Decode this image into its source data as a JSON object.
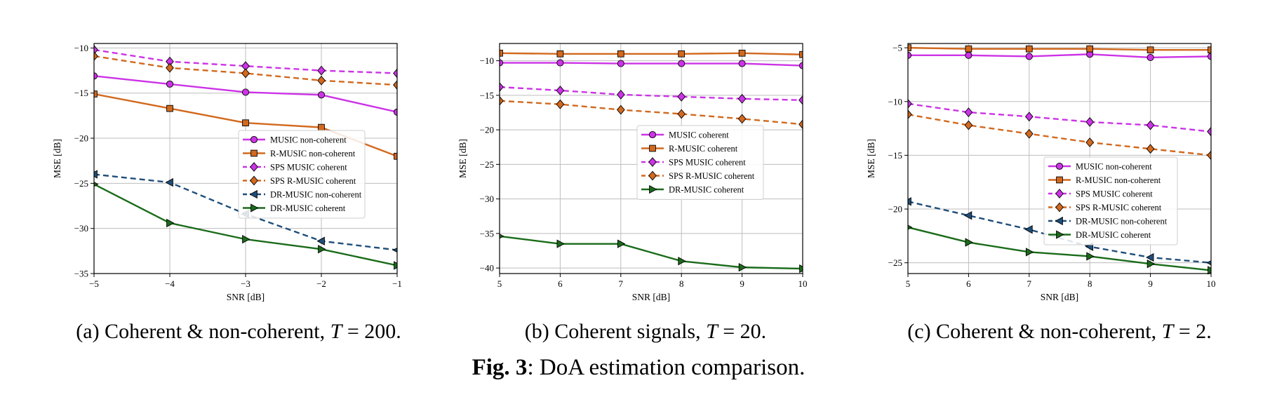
{
  "figure": {
    "caption_label": "Fig. 3",
    "caption_text": ": DoA estimation comparison."
  },
  "chart_data": [
    {
      "type": "line",
      "subcaption": {
        "prefix": "(a) Coherent & non-coherent, ",
        "var": "T",
        "eq": " = 200."
      },
      "xlabel": "SNR [dB]",
      "ylabel": "MSE [dB]",
      "xlim": [
        -5,
        -1
      ],
      "ylim": [
        -35,
        -9.5
      ],
      "xticks": [
        -5,
        -4,
        -3,
        -2,
        -1
      ],
      "xtick_labels": [
        "−5",
        "−4",
        "−3",
        "−2",
        "−1"
      ],
      "yticks": [
        -35,
        -30,
        -25,
        -20,
        -15,
        -10
      ],
      "ytick_labels": [
        "−35",
        "−30",
        "−25",
        "−20",
        "−15",
        "−10"
      ],
      "grid": true,
      "legend_position": "center-right",
      "x": [
        -5,
        -4,
        -3,
        -2,
        -1
      ],
      "series": [
        {
          "name": "MUSIC non-coherent",
          "values": [
            -13.1,
            -14.0,
            -14.9,
            -15.2,
            -17.1
          ],
          "color": "#cc33e6",
          "marker": "circle",
          "dash": "solid"
        },
        {
          "name": "R-MUSIC non-coherent",
          "values": [
            -15.1,
            -16.7,
            -18.3,
            -18.8,
            -22.0
          ],
          "color": "#d2691e",
          "marker": "square",
          "dash": "solid"
        },
        {
          "name": "SPS MUSIC coherent",
          "values": [
            -10.2,
            -11.5,
            -12.0,
            -12.5,
            -12.8
          ],
          "color": "#cc33e6",
          "marker": "diamond",
          "dash": "dashed"
        },
        {
          "name": "SPS R-MUSIC coherent",
          "values": [
            -10.9,
            -12.2,
            -12.8,
            -13.6,
            -14.1
          ],
          "color": "#d2691e",
          "marker": "diamond",
          "dash": "dashed"
        },
        {
          "name": "DR-MUSIC non-coherent",
          "values": [
            -24.0,
            -24.9,
            -28.4,
            -31.4,
            -32.4
          ],
          "color": "#1f4e79",
          "marker": "triangle-left",
          "dash": "dashed"
        },
        {
          "name": "DR-MUSIC coherent",
          "values": [
            -25.1,
            -29.4,
            -31.2,
            -32.3,
            -34.1
          ],
          "color": "#1a6b1a",
          "marker": "triangle-right",
          "dash": "solid"
        }
      ]
    },
    {
      "type": "line",
      "subcaption": {
        "prefix": "(b) Coherent signals, ",
        "var": "T",
        "eq": " = 20."
      },
      "xlabel": "SNR [dB]",
      "ylabel": "MSE [dB]",
      "xlim": [
        5,
        10
      ],
      "ylim": [
        -40.8,
        -7.5
      ],
      "xticks": [
        5,
        6,
        7,
        8,
        9,
        10
      ],
      "xtick_labels": [
        "5",
        "6",
        "7",
        "8",
        "9",
        "10"
      ],
      "yticks": [
        -40,
        -35,
        -30,
        -25,
        -20,
        -15,
        -10
      ],
      "ytick_labels": [
        "−40",
        "−35",
        "−30",
        "−25",
        "−20",
        "−15",
        "−10"
      ],
      "grid": true,
      "legend_position": "center-right",
      "x": [
        5,
        6,
        7,
        8,
        9,
        10
      ],
      "series": [
        {
          "name": "MUSIC coherent",
          "values": [
            -10.3,
            -10.3,
            -10.4,
            -10.4,
            -10.4,
            -10.7
          ],
          "color": "#cc33e6",
          "marker": "circle",
          "dash": "solid"
        },
        {
          "name": "R-MUSIC coherent",
          "values": [
            -8.9,
            -9.0,
            -9.0,
            -9.0,
            -8.9,
            -9.1
          ],
          "color": "#d2691e",
          "marker": "square",
          "dash": "solid"
        },
        {
          "name": "SPS MUSIC coherent",
          "values": [
            -13.8,
            -14.3,
            -14.9,
            -15.2,
            -15.5,
            -15.7
          ],
          "color": "#cc33e6",
          "marker": "diamond",
          "dash": "dashed"
        },
        {
          "name": "SPS R-MUSIC coherent",
          "values": [
            -15.8,
            -16.3,
            -17.1,
            -17.7,
            -18.4,
            -19.2
          ],
          "color": "#d2691e",
          "marker": "diamond",
          "dash": "dashed"
        },
        {
          "name": "DR-MUSIC coherent",
          "values": [
            -35.4,
            -36.5,
            -36.5,
            -39.0,
            -39.9,
            -40.1
          ],
          "color": "#1a6b1a",
          "marker": "triangle-right",
          "dash": "solid"
        }
      ]
    },
    {
      "type": "line",
      "subcaption": {
        "prefix": "(c) Coherent & non-coherent, ",
        "var": "T",
        "eq": " = 2."
      },
      "xlabel": "SNR [dB]",
      "ylabel": "MSE [dB]",
      "xlim": [
        5,
        10
      ],
      "ylim": [
        -26,
        -4.6
      ],
      "xticks": [
        5,
        6,
        7,
        8,
        9,
        10
      ],
      "xtick_labels": [
        "5",
        "6",
        "7",
        "8",
        "9",
        "10"
      ],
      "yticks": [
        -25,
        -20,
        -15,
        -10,
        -5
      ],
      "ytick_labels": [
        "−25",
        "−20",
        "−15",
        "−10",
        "−5"
      ],
      "grid": true,
      "legend_position": "lower-right",
      "x": [
        5,
        6,
        7,
        8,
        9,
        10
      ],
      "series": [
        {
          "name": "MUSIC non-coherent",
          "values": [
            -5.7,
            -5.7,
            -5.8,
            -5.6,
            -5.9,
            -5.8
          ],
          "color": "#cc33e6",
          "marker": "circle",
          "dash": "solid"
        },
        {
          "name": "R-MUSIC non-coherent",
          "values": [
            -5.0,
            -5.1,
            -5.1,
            -5.1,
            -5.2,
            -5.2
          ],
          "color": "#d2691e",
          "marker": "square",
          "dash": "solid"
        },
        {
          "name": "SPS MUSIC coherent",
          "values": [
            -10.2,
            -11.0,
            -11.4,
            -11.9,
            -12.2,
            -12.8
          ],
          "color": "#cc33e6",
          "marker": "diamond",
          "dash": "dashed"
        },
        {
          "name": "SPS R-MUSIC coherent",
          "values": [
            -11.2,
            -12.2,
            -13.0,
            -13.8,
            -14.4,
            -15.0
          ],
          "color": "#d2691e",
          "marker": "diamond",
          "dash": "dashed"
        },
        {
          "name": "DR-MUSIC non-coherent",
          "values": [
            -19.3,
            -20.6,
            -21.9,
            -23.5,
            -24.5,
            -25.0
          ],
          "color": "#1f4e79",
          "marker": "triangle-left",
          "dash": "dashed"
        },
        {
          "name": "DR-MUSIC coherent",
          "values": [
            -21.7,
            -23.1,
            -24.0,
            -24.4,
            -25.1,
            -25.7
          ],
          "color": "#1a6b1a",
          "marker": "triangle-right",
          "dash": "solid"
        }
      ]
    }
  ]
}
